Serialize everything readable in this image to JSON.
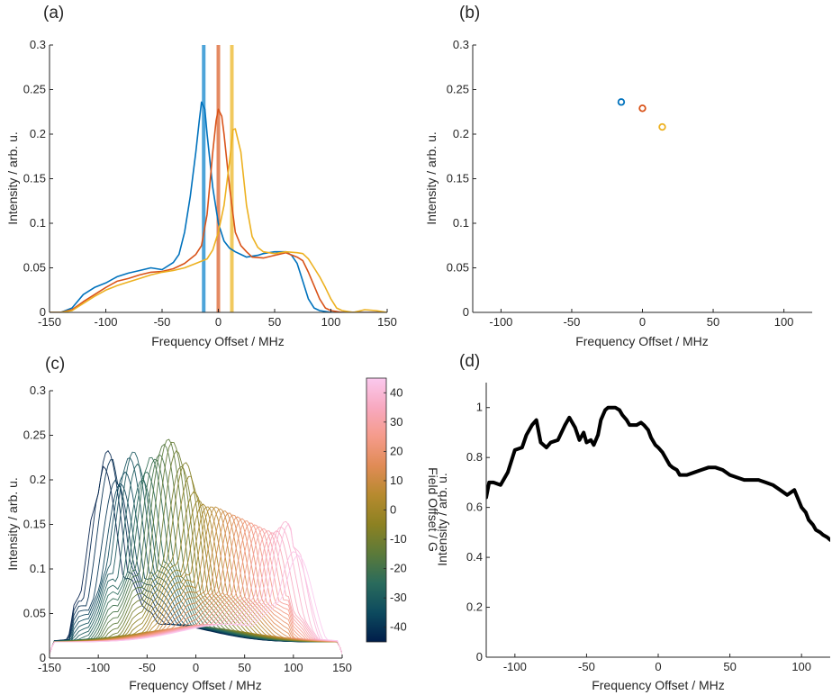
{
  "chart_data": [
    {
      "panel": "(a)",
      "type": "line",
      "xlabel": "Frequency Offset / MHz",
      "ylabel": "Intensity / arb. u.",
      "xlim": [
        -150,
        150
      ],
      "ylim": [
        0,
        0.3
      ],
      "xticks": [
        -150,
        -100,
        -50,
        0,
        50,
        100,
        150
      ],
      "yticks": [
        0,
        0.05,
        0.1,
        0.15,
        0.2,
        0.25,
        0.3
      ],
      "grid": false,
      "series": [
        {
          "color": "#0072bd",
          "x": [
            -150,
            -140,
            -130,
            -120,
            -110,
            -100,
            -90,
            -80,
            -70,
            -60,
            -50,
            -40,
            -35,
            -30,
            -25,
            -22,
            -20,
            -17,
            -15,
            -12,
            -10,
            -5,
            0,
            5,
            10,
            15,
            20,
            25,
            30,
            35,
            40,
            50,
            60,
            65,
            70,
            75,
            80,
            85,
            90,
            100,
            110,
            120,
            130,
            140,
            150
          ],
          "y": [
            0.0,
            0.0,
            0.005,
            0.02,
            0.028,
            0.033,
            0.04,
            0.044,
            0.047,
            0.05,
            0.048,
            0.056,
            0.065,
            0.09,
            0.13,
            0.16,
            0.18,
            0.215,
            0.236,
            0.228,
            0.2,
            0.14,
            0.1,
            0.08,
            0.072,
            0.068,
            0.065,
            0.062,
            0.063,
            0.064,
            0.066,
            0.068,
            0.068,
            0.064,
            0.055,
            0.035,
            0.015,
            0.005,
            0.002,
            0.0,
            0.0,
            0.0,
            0.0,
            0.0,
            0.0
          ]
        },
        {
          "color": "#d95319",
          "x": [
            -150,
            -140,
            -130,
            -120,
            -110,
            -100,
            -90,
            -80,
            -70,
            -60,
            -50,
            -40,
            -30,
            -20,
            -15,
            -10,
            -5,
            -2,
            0,
            3,
            5,
            10,
            15,
            20,
            25,
            30,
            40,
            50,
            60,
            70,
            75,
            80,
            85,
            90,
            95,
            100,
            110,
            120,
            130,
            140,
            150
          ],
          "y": [
            0.0,
            0.0,
            0.003,
            0.012,
            0.02,
            0.028,
            0.035,
            0.038,
            0.042,
            0.045,
            0.046,
            0.049,
            0.055,
            0.065,
            0.075,
            0.11,
            0.18,
            0.215,
            0.228,
            0.22,
            0.2,
            0.14,
            0.09,
            0.075,
            0.068,
            0.062,
            0.061,
            0.064,
            0.067,
            0.062,
            0.058,
            0.045,
            0.03,
            0.015,
            0.005,
            0.002,
            0.0,
            0.0,
            0.0,
            0.0,
            0.0
          ]
        },
        {
          "color": "#edb120",
          "x": [
            -150,
            -140,
            -130,
            -120,
            -110,
            -100,
            -90,
            -80,
            -70,
            -60,
            -50,
            -40,
            -30,
            -20,
            -10,
            -5,
            0,
            5,
            10,
            13,
            15,
            20,
            25,
            30,
            35,
            40,
            50,
            60,
            70,
            75,
            80,
            85,
            90,
            95,
            100,
            105,
            110,
            120,
            130,
            140,
            150
          ],
          "y": [
            0.0,
            0.0,
            0.002,
            0.01,
            0.018,
            0.025,
            0.03,
            0.034,
            0.038,
            0.042,
            0.045,
            0.047,
            0.05,
            0.055,
            0.06,
            0.07,
            0.09,
            0.12,
            0.17,
            0.205,
            0.206,
            0.18,
            0.12,
            0.085,
            0.073,
            0.068,
            0.066,
            0.068,
            0.067,
            0.066,
            0.06,
            0.05,
            0.04,
            0.028,
            0.015,
            0.005,
            0.002,
            0.0,
            0.003,
            0.002,
            0.0
          ]
        }
      ],
      "vlines": [
        {
          "x": -13,
          "color": "#4da4d9"
        },
        {
          "x": 0,
          "color": "#e48a62"
        },
        {
          "x": 12,
          "color": "#f1c95e"
        }
      ]
    },
    {
      "panel": "(b)",
      "type": "scatter",
      "xlabel": "Frequency Offset / MHz",
      "ylabel": "Intensity / arb. u.",
      "xlim": [
        -120,
        120
      ],
      "ylim": [
        0,
        0.3
      ],
      "xticks": [
        -100,
        -50,
        0,
        50,
        100
      ],
      "yticks": [
        0,
        0.05,
        0.1,
        0.15,
        0.2,
        0.25,
        0.3
      ],
      "grid": false,
      "points": [
        {
          "x": -15,
          "y": 0.236,
          "color": "#0072bd"
        },
        {
          "x": 0,
          "y": 0.229,
          "color": "#d95319"
        },
        {
          "x": 14,
          "y": 0.208,
          "color": "#edb120"
        }
      ]
    },
    {
      "panel": "(c)",
      "type": "line",
      "xlabel": "Frequency Offset / MHz",
      "ylabel": "Intensity / arb. u.",
      "xlim": [
        -150,
        150
      ],
      "ylim": [
        0,
        0.3
      ],
      "xticks": [
        -150,
        -100,
        -50,
        0,
        50,
        100,
        150
      ],
      "yticks": [
        0,
        0.05,
        0.1,
        0.15,
        0.2,
        0.25,
        0.3
      ],
      "grid": false,
      "colorbar": {
        "label": "Field Offset / G",
        "range": [
          -45,
          45
        ],
        "ticks": [
          -40,
          -30,
          -20,
          -10,
          0,
          10,
          20,
          30,
          40
        ],
        "colors": [
          "#001d4a",
          "#0d4a5e",
          "#2a6b5c",
          "#5b7a3a",
          "#8c8122",
          "#b68a2e",
          "#e08b55",
          "#f59b8a",
          "#f8a9c0",
          "#fbc9ee"
        ]
      },
      "series_count": 46,
      "field_range": [
        -45,
        45
      ],
      "envelope_x": [
        -150,
        -140,
        -130,
        -125,
        -120,
        -110,
        -100,
        -95,
        -90,
        -85,
        -80,
        -75,
        -70,
        -65,
        -60,
        -55,
        -50,
        -45,
        -40,
        -35,
        -30,
        -25,
        -20,
        -15,
        -10,
        -5,
        0,
        10,
        20,
        30,
        40,
        50,
        60,
        70,
        80,
        90,
        95,
        100,
        110,
        120,
        130,
        140,
        150
      ],
      "envelope_y": [
        0.0,
        0.03,
        0.08,
        0.16,
        0.17,
        0.14,
        0.18,
        0.215,
        0.235,
        0.22,
        0.19,
        0.2,
        0.22,
        0.235,
        0.22,
        0.2,
        0.21,
        0.23,
        0.22,
        0.235,
        0.246,
        0.245,
        0.235,
        0.215,
        0.22,
        0.2,
        0.18,
        0.17,
        0.17,
        0.165,
        0.16,
        0.155,
        0.15,
        0.145,
        0.14,
        0.15,
        0.16,
        0.12,
        0.11,
        0.08,
        0.05,
        0.03,
        0.0
      ]
    },
    {
      "panel": "(d)",
      "type": "line",
      "xlabel": "Frequency Offset / MHz",
      "ylabel": "Intensity / arb. u.",
      "xlim": [
        -120,
        120
      ],
      "ylim": [
        0,
        1.1
      ],
      "xticks": [
        -100,
        -50,
        0,
        50,
        100
      ],
      "yticks": [
        0,
        0.2,
        0.4,
        0.6,
        0.8,
        1
      ],
      "grid": false,
      "series": [
        {
          "color": "#000000",
          "x": [
            -120,
            -118,
            -115,
            -110,
            -105,
            -100,
            -95,
            -92,
            -88,
            -85,
            -82,
            -78,
            -75,
            -70,
            -65,
            -62,
            -58,
            -55,
            -52,
            -50,
            -47,
            -45,
            -42,
            -40,
            -37,
            -35,
            -32,
            -30,
            -27,
            -25,
            -22,
            -20,
            -18,
            -15,
            -12,
            -10,
            -7,
            -5,
            -2,
            0,
            3,
            5,
            8,
            10,
            13,
            15,
            18,
            20,
            25,
            30,
            35,
            40,
            45,
            50,
            55,
            60,
            65,
            70,
            75,
            80,
            85,
            90,
            95,
            100,
            103,
            105,
            108,
            110,
            113,
            115,
            118,
            120
          ],
          "y": [
            0.64,
            0.7,
            0.7,
            0.69,
            0.74,
            0.83,
            0.84,
            0.89,
            0.93,
            0.95,
            0.86,
            0.84,
            0.86,
            0.87,
            0.93,
            0.96,
            0.92,
            0.87,
            0.9,
            0.86,
            0.87,
            0.85,
            0.89,
            0.95,
            0.99,
            1.0,
            1.0,
            1.0,
            0.99,
            0.97,
            0.95,
            0.93,
            0.93,
            0.93,
            0.94,
            0.93,
            0.91,
            0.88,
            0.85,
            0.84,
            0.82,
            0.8,
            0.77,
            0.76,
            0.75,
            0.73,
            0.73,
            0.73,
            0.74,
            0.75,
            0.76,
            0.76,
            0.75,
            0.73,
            0.72,
            0.71,
            0.71,
            0.71,
            0.7,
            0.69,
            0.67,
            0.65,
            0.67,
            0.6,
            0.58,
            0.55,
            0.53,
            0.51,
            0.5,
            0.49,
            0.48,
            0.47
          ]
        }
      ]
    }
  ]
}
